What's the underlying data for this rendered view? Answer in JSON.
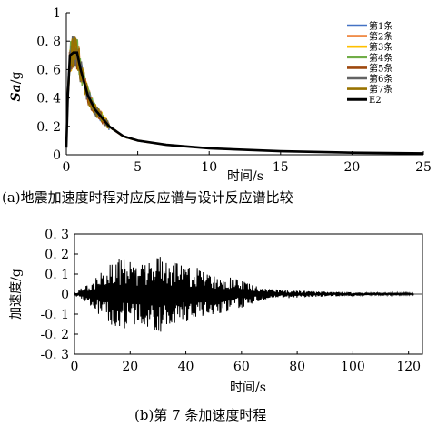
{
  "chart_data": [
    {
      "type": "line",
      "title": "",
      "xlabel": "时间/s",
      "ylabel_main": "Sa",
      "ylabel_unit": "/g",
      "xlim": [
        0,
        25
      ],
      "ylim": [
        0,
        1
      ],
      "xticks": [
        "0",
        "5",
        "10",
        "15",
        "20",
        "25"
      ],
      "yticks": [
        "0",
        "0. 2",
        "0. 4",
        "0. 6",
        "0. 8",
        "1"
      ],
      "legend_position": "top-right",
      "grid": false,
      "series": [
        {
          "name": "第1条",
          "color": "#4472c4"
        },
        {
          "name": "第2条",
          "color": "#ed7d31"
        },
        {
          "name": "第3条",
          "color": "#ffc000"
        },
        {
          "name": "第4条",
          "color": "#70ad47"
        },
        {
          "name": "第5条",
          "color": "#9e480e"
        },
        {
          "name": "第6条",
          "color": "#636363"
        },
        {
          "name": "第7条",
          "color": "#997300"
        },
        {
          "name": "E2",
          "color": "#000000",
          "x": [
            0,
            0.1,
            0.25,
            0.5,
            0.75,
            1.0,
            1.5,
            2.0,
            3.0,
            4.0,
            5.0,
            7.0,
            10.0,
            15.0,
            20.0,
            25.0
          ],
          "y": [
            0.05,
            0.4,
            0.7,
            0.72,
            0.72,
            0.6,
            0.42,
            0.32,
            0.2,
            0.13,
            0.1,
            0.07,
            0.045,
            0.025,
            0.015,
            0.01
          ]
        }
      ],
      "caption": "(a)地震加速度时程对应反应谱与设计反应谱比较"
    },
    {
      "type": "line",
      "title": "",
      "xlabel": "时间/s",
      "ylabel": "加速度/g",
      "xlim": [
        0,
        125
      ],
      "ylim": [
        -0.3,
        0.3
      ],
      "xticks": [
        "0",
        "20",
        "40",
        "60",
        "80",
        "100",
        "120"
      ],
      "yticks": [
        "-0. 3",
        "-0. 2",
        "-0. 1",
        "0",
        "0. 1",
        "0. 2",
        "0. 3"
      ],
      "grid": false,
      "series": [
        {
          "color": "#000000",
          "envelope_t": [
            0,
            5,
            10,
            15,
            20,
            25,
            30,
            35,
            40,
            45,
            50,
            55,
            60,
            65,
            70,
            80,
            90,
            100,
            110,
            120
          ],
          "envelope_amp": [
            0.01,
            0.05,
            0.12,
            0.18,
            0.17,
            0.15,
            0.2,
            0.16,
            0.14,
            0.13,
            0.1,
            0.09,
            0.07,
            0.04,
            0.025,
            0.018,
            0.012,
            0.01,
            0.008,
            0.006
          ]
        }
      ],
      "caption": "(b)第 7 条加速度时程"
    }
  ]
}
